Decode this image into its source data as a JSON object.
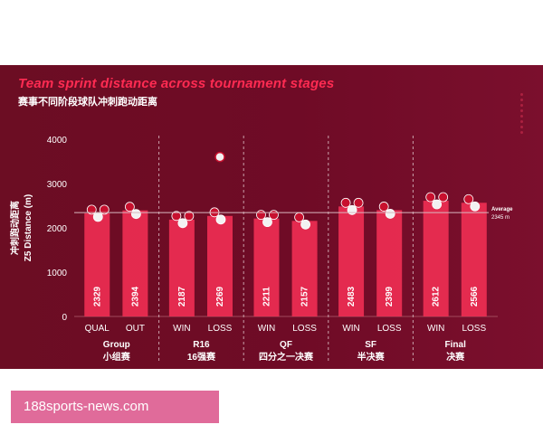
{
  "title_en": "Team sprint distance across tournament stages",
  "title_zh": "赛事不同阶段球队冲刺跑动距离",
  "watermark": "188sports-news.com",
  "colors": {
    "bar": "#ee2e52",
    "text": "#ffffff",
    "accent": "#ff2b52",
    "average_line": "#d9b8c0"
  },
  "chart_data": {
    "type": "bar",
    "ylabel_zh": "冲刺跑动距离",
    "ylabel": "Z5 Distance (m)",
    "ylim": [
      0,
      4000
    ],
    "yticks": [
      0,
      1000,
      2000,
      3000,
      4000
    ],
    "grid": false,
    "groups": [
      {
        "name": "Group",
        "name_zh": "小组赛",
        "categories": [
          "QUAL",
          "OUT"
        ],
        "values": [
          2329,
          2394
        ]
      },
      {
        "name": "R16",
        "name_zh": "16强赛",
        "categories": [
          "WIN",
          "LOSS"
        ],
        "values": [
          2187,
          2269
        ]
      },
      {
        "name": "QF",
        "name_zh": "四分之一决赛",
        "categories": [
          "WIN",
          "LOSS"
        ],
        "values": [
          2211,
          2157
        ]
      },
      {
        "name": "SF",
        "name_zh": "半决赛",
        "categories": [
          "WIN",
          "LOSS"
        ],
        "values": [
          2483,
          2399
        ]
      },
      {
        "name": "Final",
        "name_zh": "决赛",
        "categories": [
          "WIN",
          "LOSS"
        ],
        "values": [
          2612,
          2566
        ]
      }
    ],
    "average": {
      "label": "Average",
      "value": 2345,
      "value_label": "2345 m"
    }
  }
}
